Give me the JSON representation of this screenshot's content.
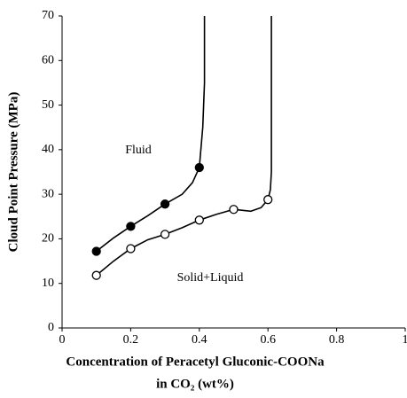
{
  "chart_data": {
    "type": "line",
    "x_label": [
      "Concentration of Peracetyl Gluconic-COONa",
      "in CO₂ (wt%)"
    ],
    "y_label": "Cloud Point Pressure (MPa)",
    "annotations": [
      "Fluid",
      "Solid+Liquid"
    ],
    "xlim": [
      0,
      1
    ],
    "xticks": [
      0,
      0.2,
      0.4,
      0.6,
      0.8,
      1
    ],
    "ylim": [
      0,
      70
    ],
    "yticks": [
      0,
      10,
      20,
      30,
      40,
      50,
      60,
      70
    ],
    "series": [
      {
        "marker": "filled",
        "color": "#000000",
        "x": [
          0.1,
          0.2,
          0.3,
          0.4
        ],
        "values": [
          17.2,
          22.8,
          27.8,
          36
        ],
        "line": {
          "x": [
            0.1,
            0.15,
            0.2,
            0.25,
            0.3,
            0.35,
            0.38,
            0.4,
            0.41,
            0.415,
            0.415
          ],
          "values": [
            17.2,
            20.2,
            22.8,
            25.2,
            27.8,
            30,
            32.6,
            36,
            45,
            55,
            70
          ]
        }
      },
      {
        "marker": "open",
        "color": "#000000",
        "x": [
          0.1,
          0.2,
          0.3,
          0.4,
          0.5,
          0.6
        ],
        "values": [
          11.8,
          17.8,
          21,
          24.2,
          26.6,
          28.8
        ],
        "line": {
          "x": [
            0.1,
            0.15,
            0.2,
            0.25,
            0.3,
            0.35,
            0.4,
            0.45,
            0.5,
            0.55,
            0.58,
            0.6,
            0.607,
            0.61,
            0.61
          ],
          "values": [
            11.8,
            15,
            17.8,
            19.8,
            21,
            22.5,
            24.2,
            25.5,
            26.6,
            26.2,
            27,
            28.8,
            31,
            35,
            70
          ]
        }
      }
    ]
  }
}
